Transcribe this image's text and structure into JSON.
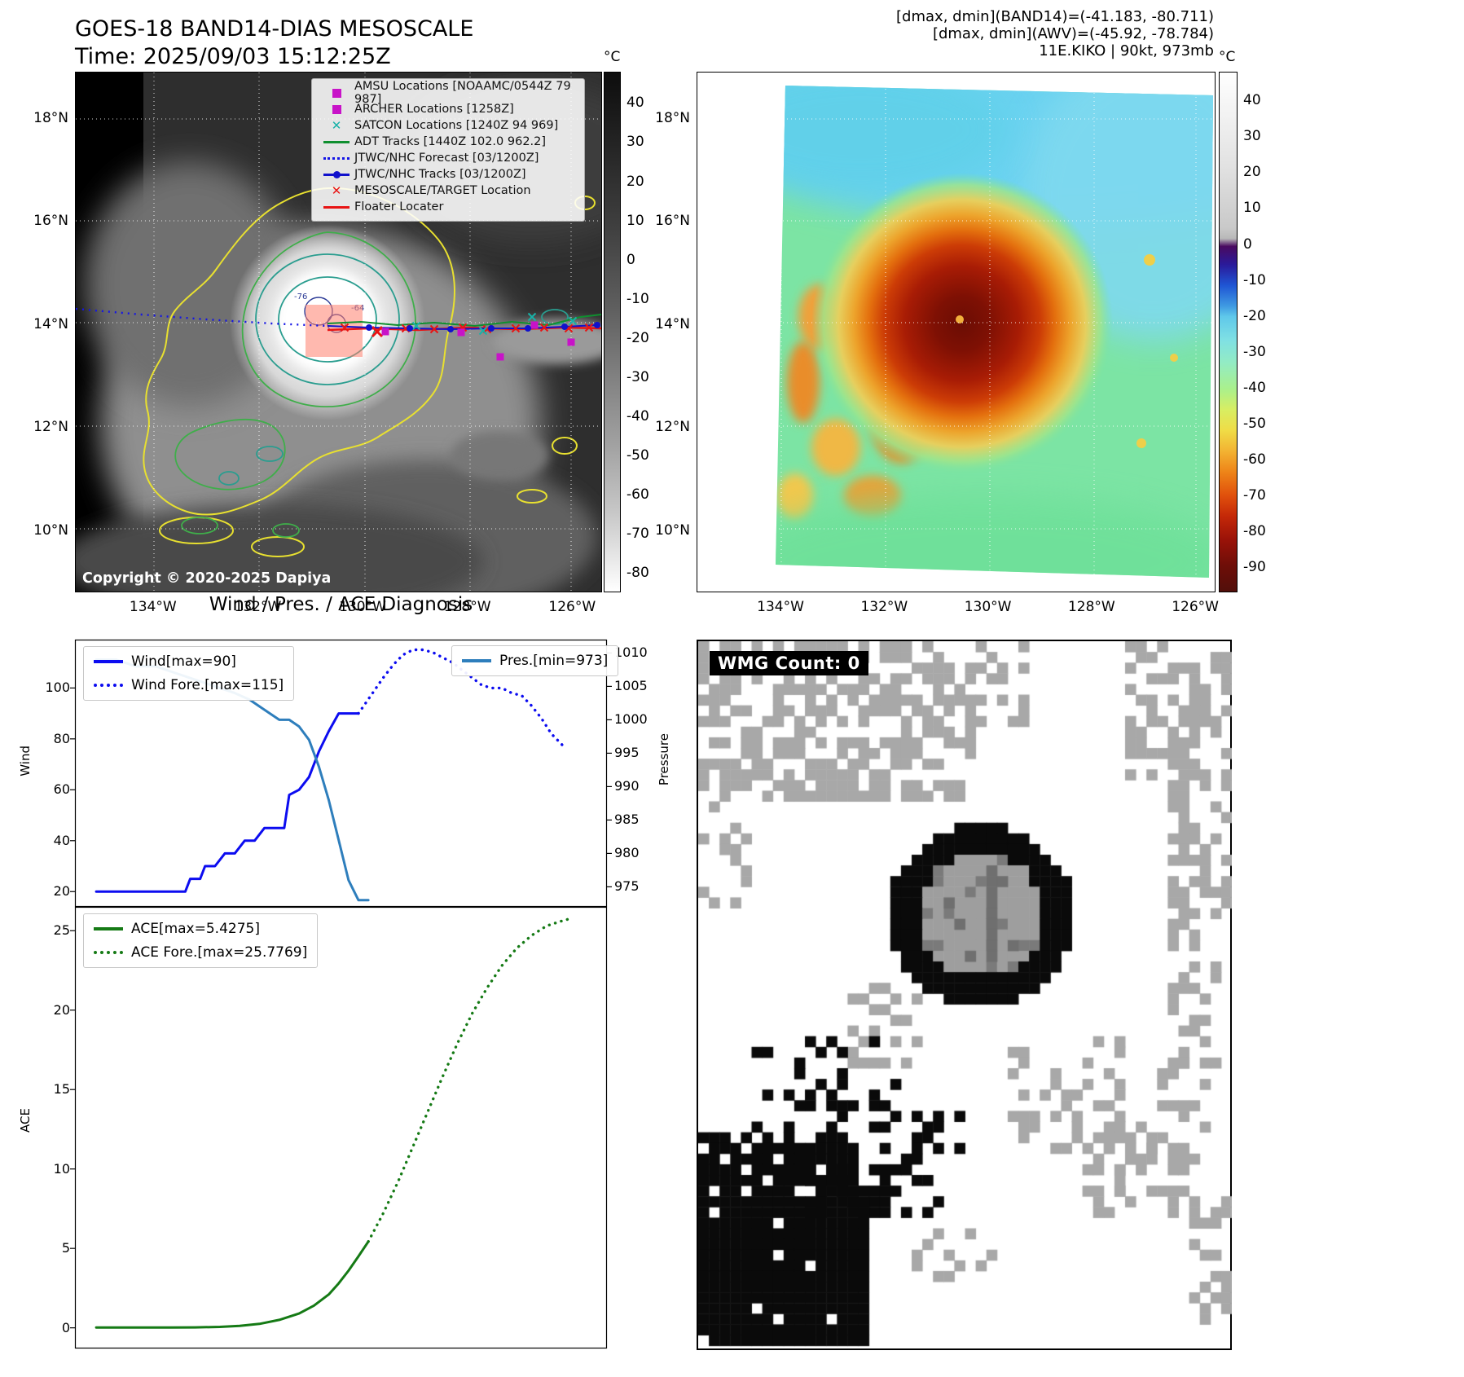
{
  "band14": {
    "title": "GOES-18 BAND14-DIAS MESOSCALE",
    "time_label": "Time: 2025/09/03 15:12:25Z",
    "copyright": "Copyright © 2020-2025 Dapiya",
    "contour_labels": [
      "-76",
      "-64"
    ],
    "legend": [
      {
        "label": "AMSU Locations [NOAAMC/0544Z 79 987]",
        "marker": "square",
        "color": "#c813c8"
      },
      {
        "label": "ARCHER Locations [1258Z]",
        "marker": "square",
        "color": "#c813c8"
      },
      {
        "label": "SATCON Locations [1240Z 94 969]",
        "marker": "x",
        "color": "#18b2a8"
      },
      {
        "label": "ADT Tracks [1440Z 102.0 962.2]",
        "marker": "line",
        "color": "#0f8f2f"
      },
      {
        "label": "JTWC/NHC Forecast [03/1200Z]",
        "marker": "dotted",
        "color": "#1414e6"
      },
      {
        "label": "JTWC/NHC Tracks [03/1200Z]",
        "marker": "line-dot",
        "color": "#1111cc"
      },
      {
        "label": "MESOSCALE/TARGET Location",
        "marker": "x",
        "color": "#e81414"
      },
      {
        "label": "Floater Locater",
        "marker": "line",
        "color": "#e81414"
      }
    ],
    "lat_ticks": [
      "18°N",
      "16°N",
      "14°N",
      "12°N",
      "10°N"
    ],
    "lon_ticks": [
      "134°W",
      "132°W",
      "130°W",
      "128°W",
      "126°W"
    ],
    "colorbar_unit": "°C",
    "colorbar_ticks": [
      "40",
      "30",
      "20",
      "10",
      "0",
      "-10",
      "-20",
      "-30",
      "-40",
      "-50",
      "-60",
      "-70",
      "-80"
    ]
  },
  "awv": {
    "header_lines": [
      "[dmax, dmin](BAND14)=(-41.183, -80.711)",
      "[dmax, dmin](AWV)=(-45.92, -78.784)",
      "11E.KIKO | 90kt, 973mb"
    ],
    "lat_ticks": [
      "18°N",
      "16°N",
      "14°N",
      "12°N",
      "10°N"
    ],
    "lon_ticks": [
      "134°W",
      "132°W",
      "130°W",
      "128°W",
      "126°W"
    ],
    "colorbar_unit": "°C",
    "colorbar_ticks": [
      "40",
      "30",
      "20",
      "10",
      "0",
      "-10",
      "-20",
      "-30",
      "-40",
      "-50",
      "-60",
      "-70",
      "-80",
      "-90"
    ]
  },
  "diagnosis": {
    "title": "Wind / Pres. / ACE Diagnosis"
  },
  "wmg": {
    "count_label": "WMG Count: 0"
  },
  "chart_data": [
    {
      "id": "wind_pres",
      "type": "line",
      "title": "Wind / Pres. / ACE Diagnosis",
      "left_axis": {
        "label": "Wind",
        "ticks": [
          20,
          40,
          60,
          80,
          100
        ],
        "lim": [
          14,
          119
        ]
      },
      "right_axis": {
        "label": "Pressure",
        "ticks": [
          975,
          980,
          985,
          990,
          995,
          1000,
          1005,
          1010
        ],
        "lim": [
          972,
          1012
        ]
      },
      "series": [
        {
          "name": "Wind[max=90]",
          "axis": "left",
          "dashed": false,
          "color": "#0c0cf0",
          "legend": "left",
          "x": [
            0,
            0.04,
            0.08,
            0.12,
            0.16,
            0.18,
            0.19,
            0.21,
            0.22,
            0.24,
            0.26,
            0.28,
            0.3,
            0.32,
            0.34,
            0.36,
            0.38,
            0.39,
            0.41,
            0.43,
            0.45,
            0.47,
            0.49,
            0.53
          ],
          "y": [
            20,
            20,
            20,
            20,
            20,
            20,
            25,
            25,
            30,
            30,
            35,
            35,
            40,
            40,
            45,
            45,
            45,
            58,
            60,
            65,
            75,
            83,
            90,
            90
          ]
        },
        {
          "name": "Wind Fore.[max=115]",
          "axis": "left",
          "dashed": true,
          "color": "#0c0cf0",
          "legend": "left",
          "x": [
            0.53,
            0.555,
            0.58,
            0.6,
            0.62,
            0.64,
            0.66,
            0.68,
            0.7,
            0.72,
            0.74,
            0.76,
            0.78,
            0.8,
            0.82,
            0.84,
            0.86,
            0.88,
            0.9,
            0.92,
            0.95
          ],
          "y": [
            90,
            97,
            104,
            109,
            113,
            115,
            115,
            114,
            112,
            110,
            107,
            104,
            101,
            100,
            100,
            98,
            97,
            93,
            88,
            82,
            76
          ]
        },
        {
          "name": "Pres.[min=973]",
          "axis": "right",
          "dashed": false,
          "color": "#2e7ebc",
          "legend": "right",
          "x": [
            0,
            0.04,
            0.08,
            0.12,
            0.16,
            0.2,
            0.24,
            0.28,
            0.31,
            0.33,
            0.35,
            0.37,
            0.39,
            0.41,
            0.43,
            0.45,
            0.47,
            0.49,
            0.51,
            0.53,
            0.55
          ],
          "y": [
            1009,
            1009,
            1008,
            1008,
            1007,
            1006,
            1005,
            1004,
            1003,
            1002,
            1001,
            1000,
            1000,
            999,
            997,
            993,
            988,
            982,
            976,
            973,
            973
          ]
        }
      ]
    },
    {
      "id": "ace",
      "type": "line",
      "left_axis": {
        "label": "ACE",
        "ticks": [
          0,
          5,
          10,
          15,
          20,
          25
        ],
        "lim": [
          -1.3,
          26.5
        ]
      },
      "series": [
        {
          "name": "ACE[max=5.4275]",
          "axis": "left",
          "dashed": false,
          "color": "#157a15",
          "legend": "left",
          "x": [
            0,
            0.05,
            0.1,
            0.15,
            0.2,
            0.25,
            0.29,
            0.33,
            0.37,
            0.41,
            0.44,
            0.47,
            0.49,
            0.51,
            0.53,
            0.55
          ],
          "y": [
            0.02,
            0.02,
            0.02,
            0.02,
            0.03,
            0.06,
            0.12,
            0.25,
            0.5,
            0.9,
            1.4,
            2.1,
            2.8,
            3.6,
            4.5,
            5.4275
          ]
        },
        {
          "name": "ACE Fore.[max=25.7769]",
          "axis": "left",
          "dashed": true,
          "color": "#157a15",
          "legend": "left",
          "x": [
            0.55,
            0.58,
            0.61,
            0.64,
            0.67,
            0.7,
            0.73,
            0.76,
            0.79,
            0.82,
            0.85,
            0.88,
            0.91,
            0.94,
            0.96
          ],
          "y": [
            5.4275,
            7.2,
            9.2,
            11.4,
            13.6,
            15.8,
            17.9,
            19.8,
            21.4,
            22.8,
            23.9,
            24.7,
            25.3,
            25.6,
            25.7769
          ]
        }
      ]
    }
  ]
}
